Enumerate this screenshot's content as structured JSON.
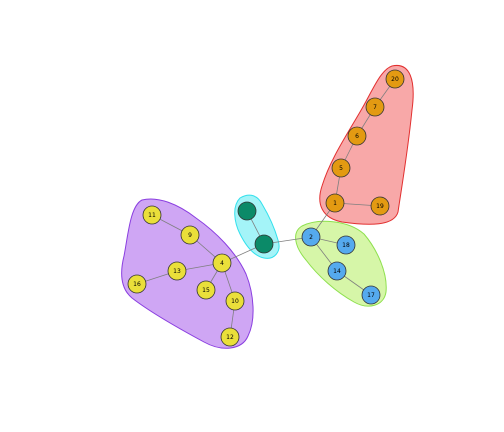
{
  "graph": {
    "groups": [
      {
        "id": "group-red",
        "fill": "#f8a8a8",
        "stroke": "#e23030"
      },
      {
        "id": "group-cyan",
        "fill": "#a4f4f8",
        "stroke": "#33e0ec"
      },
      {
        "id": "group-green",
        "fill": "#d6f6a8",
        "stroke": "#8ee04e"
      },
      {
        "id": "group-purple",
        "fill": "#cfa6f4",
        "stroke": "#8a3ee0"
      }
    ],
    "nodes": [
      {
        "id": "n20",
        "label": "20",
        "color": "#e39a12",
        "group": "group-red"
      },
      {
        "id": "n7",
        "label": "7",
        "color": "#e39a12",
        "group": "group-red"
      },
      {
        "id": "n6",
        "label": "6",
        "color": "#e39a12",
        "group": "group-red"
      },
      {
        "id": "n5",
        "label": "5",
        "color": "#e39a12",
        "group": "group-red"
      },
      {
        "id": "n1",
        "label": "1",
        "color": "#e39a12",
        "group": "group-red"
      },
      {
        "id": "n19",
        "label": "19",
        "color": "#e39a12",
        "group": "group-red"
      },
      {
        "id": "n2",
        "label": "2",
        "color": "#55aaee",
        "group": "group-green"
      },
      {
        "id": "n18",
        "label": "18",
        "color": "#55aaee",
        "group": "group-green"
      },
      {
        "id": "n14",
        "label": "14",
        "color": "#55aaee",
        "group": "group-green"
      },
      {
        "id": "n17",
        "label": "17",
        "color": "#55aaee",
        "group": "group-green"
      },
      {
        "id": "nA",
        "label": "",
        "color": "#0b8a68",
        "group": "group-cyan"
      },
      {
        "id": "nB",
        "label": "",
        "color": "#0b8a68",
        "group": "group-cyan"
      },
      {
        "id": "n11",
        "label": "11",
        "color": "#eadf3a",
        "group": "group-purple"
      },
      {
        "id": "n9",
        "label": "9",
        "color": "#eadf3a",
        "group": "group-purple"
      },
      {
        "id": "n4",
        "label": "4",
        "color": "#eadf3a",
        "group": "group-purple"
      },
      {
        "id": "n13",
        "label": "13",
        "color": "#eadf3a",
        "group": "group-purple"
      },
      {
        "id": "n16",
        "label": "16",
        "color": "#eadf3a",
        "group": "group-purple"
      },
      {
        "id": "n15",
        "label": "15",
        "color": "#eadf3a",
        "group": "group-purple"
      },
      {
        "id": "n10",
        "label": "10",
        "color": "#eadf3a",
        "group": "group-purple"
      },
      {
        "id": "n12",
        "label": "12",
        "color": "#eadf3a",
        "group": "group-purple"
      }
    ],
    "edges": [
      [
        "n20",
        "n7"
      ],
      [
        "n7",
        "n6"
      ],
      [
        "n6",
        "n5"
      ],
      [
        "n5",
        "n1"
      ],
      [
        "n1",
        "n19"
      ],
      [
        "n1",
        "n2"
      ],
      [
        "n2",
        "n18"
      ],
      [
        "n2",
        "n14"
      ],
      [
        "n14",
        "n17"
      ],
      [
        "n2",
        "nB"
      ],
      [
        "nA",
        "nB"
      ],
      [
        "nB",
        "n4"
      ],
      [
        "n11",
        "n9"
      ],
      [
        "n9",
        "n4"
      ],
      [
        "n4",
        "n13"
      ],
      [
        "n13",
        "n16"
      ],
      [
        "n4",
        "n15"
      ],
      [
        "n4",
        "n10"
      ],
      [
        "n10",
        "n12"
      ]
    ],
    "edge_color": "#7f7f7f",
    "node_stroke": "#333333"
  }
}
